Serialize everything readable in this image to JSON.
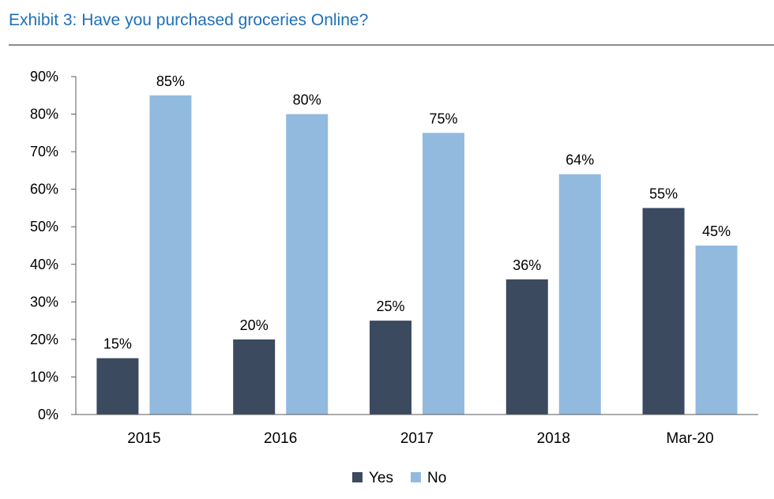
{
  "exhibit_title": "Exhibit 3: Have you purchased groceries Online?",
  "chart_data": {
    "type": "bar",
    "title": "Exhibit 3: Have you purchased groceries Online?",
    "categories": [
      "2015",
      "2016",
      "2017",
      "2018",
      "Mar-20"
    ],
    "series": [
      {
        "name": "Yes",
        "values": [
          15,
          20,
          25,
          36,
          55
        ],
        "color": "#3b4a5e"
      },
      {
        "name": "No",
        "values": [
          85,
          80,
          75,
          64,
          45
        ],
        "color": "#92badf"
      }
    ],
    "data_labels": [
      [
        "15%",
        "20%",
        "25%",
        "36%",
        "55%"
      ],
      [
        "85%",
        "80%",
        "75%",
        "64%",
        "45%"
      ]
    ],
    "ylim": [
      0,
      90
    ],
    "y_ticks": [
      "0%",
      "10%",
      "20%",
      "30%",
      "40%",
      "50%",
      "60%",
      "70%",
      "80%",
      "90%"
    ],
    "y_tick_values": [
      0,
      10,
      20,
      30,
      40,
      50,
      60,
      70,
      80,
      90
    ],
    "xlabel": "",
    "ylabel": "",
    "grid": false,
    "legend_position": "bottom"
  }
}
